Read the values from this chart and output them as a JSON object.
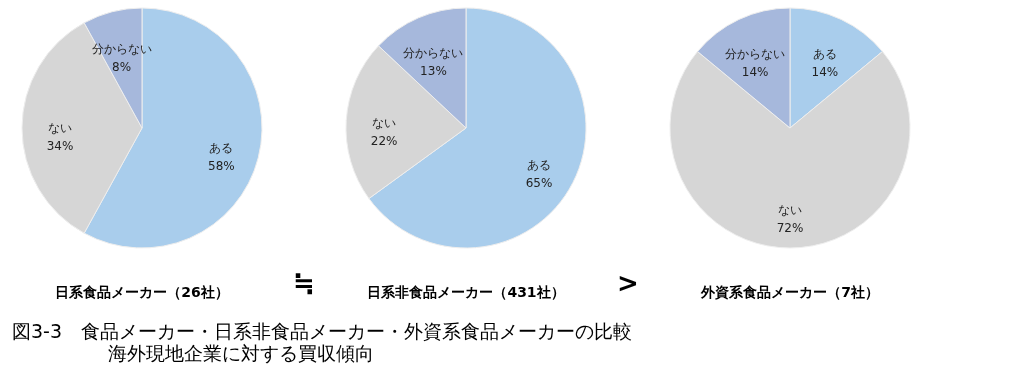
{
  "chart_data": [
    {
      "type": "pie",
      "title": "日系食品メーカー（26社）",
      "categories": [
        "ある",
        "ない",
        "分からない"
      ],
      "values": [
        58,
        34,
        8
      ],
      "value_labels": [
        "58%",
        "34%",
        "8%"
      ],
      "colors": [
        "#a9cdec",
        "#d6d6d6",
        "#a6b8dc"
      ],
      "annotations": [
        "図3-3　食品メーカー・日系非食品メーカー・外資系食品メーカーの比較",
        "海外現地企業に対する買収傾向"
      ]
    },
    {
      "type": "pie",
      "title": "日系非食品メーカー（431社）",
      "categories": [
        "ある",
        "ない",
        "分からない"
      ],
      "values": [
        65,
        22,
        13
      ],
      "value_labels": [
        "65%",
        "22%",
        "13%"
      ],
      "colors": [
        "#a9cdec",
        "#d6d6d6",
        "#a6b8dc"
      ],
      "annotations": [
        "≒"
      ]
    },
    {
      "type": "pie",
      "title": "外資系食品メーカー（7社）",
      "categories": [
        "ある",
        "ない",
        "分からない"
      ],
      "values": [
        14,
        72,
        14
      ],
      "value_labels": [
        "14%",
        "72%",
        "14%"
      ],
      "colors": [
        "#a9cdec",
        "#d6d6d6",
        "#a6b8dc"
      ],
      "annotations": [
        ">"
      ]
    }
  ]
}
